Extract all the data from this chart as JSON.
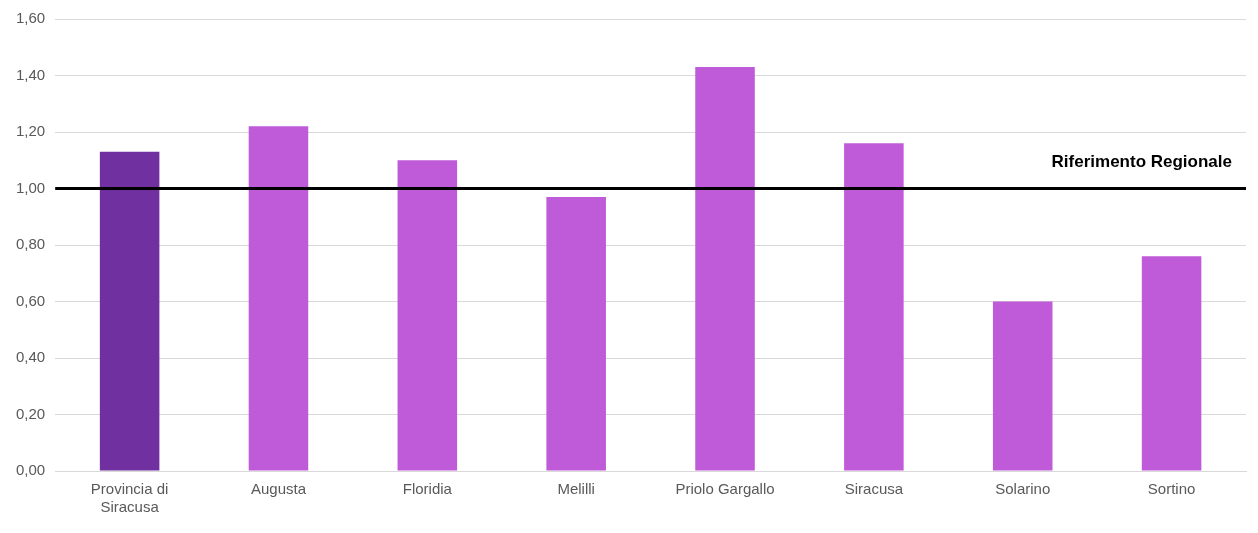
{
  "chart_data": {
    "type": "bar",
    "categories": [
      "Provincia di Siracusa",
      "Augusta",
      "Floridia",
      "Melilli",
      "Priolo Gargallo",
      "Siracusa",
      "Solarino",
      "Sortino"
    ],
    "values": [
      1.13,
      1.22,
      1.1,
      0.97,
      1.43,
      1.16,
      0.6,
      0.76
    ],
    "colors": [
      "#7030a0",
      "#bf5bd8",
      "#bf5bd8",
      "#bf5bd8",
      "#bf5bd8",
      "#bf5bd8",
      "#bf5bd8",
      "#bf5bd8"
    ],
    "ylim": [
      0,
      1.6
    ],
    "yticks": [
      {
        "value": 0,
        "label": "0,00"
      },
      {
        "value": 0.2,
        "label": "0,20"
      },
      {
        "value": 0.4,
        "label": "0,40"
      },
      {
        "value": 0.6,
        "label": "0,60"
      },
      {
        "value": 0.8,
        "label": "0,80"
      },
      {
        "value": 1,
        "label": "1,00"
      },
      {
        "value": 1.2,
        "label": "1,20"
      },
      {
        "value": 1.4,
        "label": "1,40"
      },
      {
        "value": 1.6,
        "label": "1,60"
      }
    ],
    "grid": "y",
    "legend": false,
    "ref_lines": [
      {
        "axis": "y",
        "value": 1.0,
        "label": "Riferimento Regionale",
        "color": "#000000",
        "line_style": "solid"
      }
    ]
  }
}
